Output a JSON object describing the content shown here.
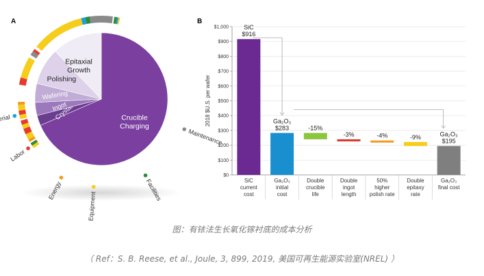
{
  "chart_data": [
    {
      "type": "pie",
      "panel_label": "A",
      "inner_slices": [
        {
          "label": "Crucible Charging",
          "value": 68.5,
          "color": "#7b3fa0",
          "text_color": "#ffffff"
        },
        {
          "label": "Crystal",
          "value": 2.5,
          "color": "#6a3d8f",
          "text_color": "#ffffff"
        },
        {
          "label": "Ingot",
          "value": 3.2,
          "color": "#9c78bd",
          "text_color": "#ffffff"
        },
        {
          "label": "Wafering",
          "value": 4.6,
          "color": "#c1acd6",
          "text_color": "#ffffff"
        },
        {
          "label": "Polishing",
          "value": 9.0,
          "color": "#ddd2ea",
          "text_color": "#222222"
        },
        {
          "label": "Epitaxial Growth",
          "value": 12.2,
          "color": "#f0ecf5",
          "text_color": "#222222"
        }
      ],
      "outer_ring_legend": [
        {
          "label": "Material",
          "color": "#1aa0db"
        },
        {
          "label": "Labor",
          "color": "#e63a2e"
        },
        {
          "label": "Energy",
          "color": "#f39a1e"
        },
        {
          "label": "Equipment",
          "color": "#f5cd1a"
        },
        {
          "label": "Facilities",
          "color": "#2e8b3a"
        },
        {
          "label": "Maintenance",
          "color": "#8a8a8a"
        }
      ]
    },
    {
      "type": "bar",
      "subtype": "waterfall",
      "panel_label": "B",
      "ylabel": "2018 $U.S. per wafer",
      "ylim": [
        0,
        1000
      ],
      "yticks": [
        "$0",
        "$100",
        "$200",
        "$300",
        "$400",
        "$500",
        "$600",
        "$700",
        "$800",
        "$900",
        "$1,000"
      ],
      "categories": [
        [
          "SiC",
          "current",
          "cost"
        ],
        [
          "Ga₂O₃",
          "initial",
          "cost"
        ],
        [
          "Double",
          "crucible",
          "life"
        ],
        [
          "Double",
          "ingot",
          "length"
        ],
        [
          "50%",
          "higher",
          "polish rate"
        ],
        [
          "Double",
          "epitaxy",
          "rate"
        ],
        [
          "Ga₂O₃",
          "final cost"
        ]
      ],
      "bars": [
        {
          "start": 0,
          "end": 916,
          "color": "#6b2a91",
          "label_lines": [
            "SiC",
            "$916"
          ]
        },
        {
          "start": 0,
          "end": 283,
          "color": "#1a8fd0",
          "label_lines": [
            "Ga₂O₃",
            "$283"
          ]
        },
        {
          "start": 283,
          "end": 240,
          "color": "#8cc63f",
          "label_lines": [
            "-15%"
          ]
        },
        {
          "start": 240,
          "end": 232,
          "color": "#d8352a",
          "label_lines": [
            "-3%"
          ]
        },
        {
          "start": 232,
          "end": 222,
          "color": "#f39a1e",
          "label_lines": [
            "-4%"
          ]
        },
        {
          "start": 222,
          "end": 195,
          "color": "#f5cd1a",
          "label_lines": [
            "-9%"
          ]
        },
        {
          "start": 0,
          "end": 195,
          "color": "#7f7f7f",
          "label_lines": [
            "Ga₂O₃",
            "$195"
          ]
        }
      ]
    }
  ],
  "caption": "图：有铱法生长氧化镓衬底的成本分析",
  "reference": "（ Ref：S. B. Reese, et al., Joule, 3, 899, 2019, 美国可再生能源实验室(NREL) ）"
}
